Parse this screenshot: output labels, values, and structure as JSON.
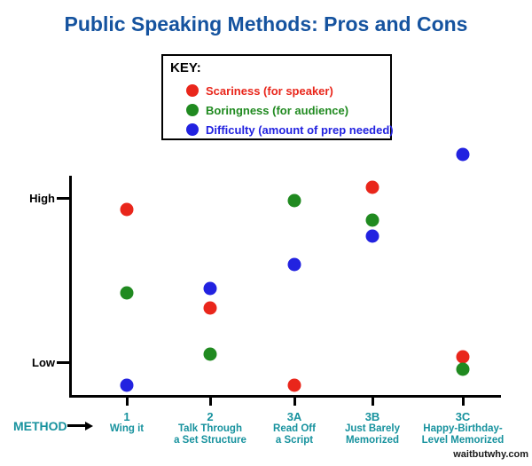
{
  "title": "Public Speaking Methods: Pros and Cons",
  "key": {
    "heading": "KEY:"
  },
  "axis": {
    "high_label": "High",
    "low_label": "Low",
    "method_label": "METHOD"
  },
  "watermark": "waitbutwhy.com",
  "colors": {
    "title_blue": "#15539f",
    "method_teal": "#17929e",
    "axis_black": "#000000",
    "scariness_red": "#e9261b",
    "boringness_green": "#208a20",
    "difficulty_blue": "#2222e0"
  },
  "chart_data": {
    "type": "scatter",
    "title": "Public Speaking Methods: Pros and Cons",
    "xlabel": "METHOD",
    "ylabel": "",
    "y_axis": {
      "style": "qualitative",
      "range": [
        0,
        10
      ],
      "ticks": [
        {
          "label": "High",
          "value": 9.0
        },
        {
          "label": "Low",
          "value": 1.5
        }
      ],
      "grid": false
    },
    "legend": {
      "heading": "KEY:",
      "position": "top-center-boxed"
    },
    "categories": [
      {
        "id": "1",
        "name": "Wing it",
        "name_lines": [
          "Wing it"
        ]
      },
      {
        "id": "2",
        "name": "Talk Through a Set Structure",
        "name_lines": [
          "Talk Through",
          "a Set Structure"
        ]
      },
      {
        "id": "3A",
        "name": "Read Off a Script",
        "name_lines": [
          "Read Off",
          "a Script"
        ]
      },
      {
        "id": "3B",
        "name": "Just Barely Memorized",
        "name_lines": [
          "Just Barely",
          "Memorized"
        ]
      },
      {
        "id": "3C",
        "name": "Happy-Birthday-Level Memorized",
        "name_lines": [
          "Happy-Birthday-",
          "Level Memorized"
        ]
      }
    ],
    "series": [
      {
        "name": "Scariness (for speaker)",
        "color": "#e9261b",
        "values": [
          8.5,
          4.0,
          0.5,
          9.5,
          1.8
        ]
      },
      {
        "name": "Boringness (for audience)",
        "color": "#208a20",
        "values": [
          4.7,
          1.9,
          8.9,
          8.0,
          1.2
        ]
      },
      {
        "name": "Difficulty (amount of prep needed)",
        "color": "#2222e0",
        "values": [
          0.5,
          4.9,
          6.0,
          7.3,
          11.0
        ]
      }
    ]
  }
}
